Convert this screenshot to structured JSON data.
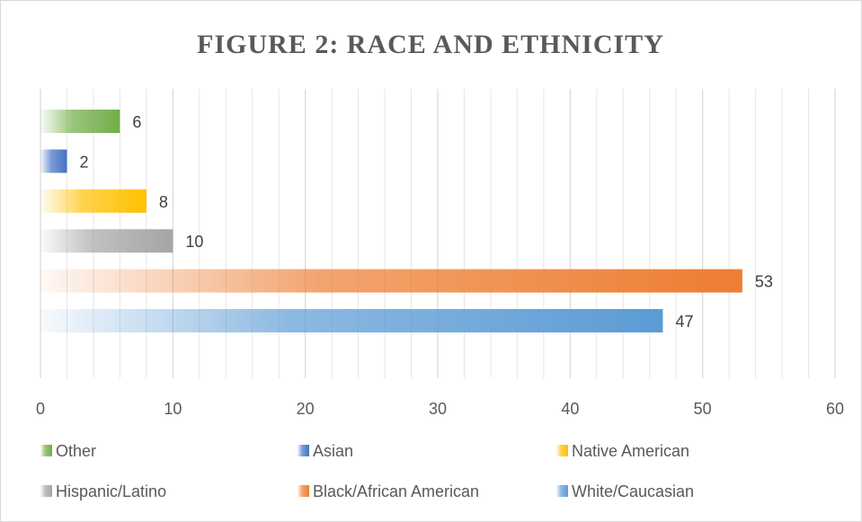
{
  "chart_data": {
    "type": "bar",
    "orientation": "horizontal",
    "title": "FIGURE 2: RACE AND ETHNICITY",
    "categories": [
      "White/Caucasian",
      "Black/African American",
      "Hispanic/Latino",
      "Native American",
      "Asian",
      "Other"
    ],
    "values": [
      47,
      53,
      10,
      8,
      2,
      6
    ],
    "data_labels": [
      "47",
      "53",
      "10",
      "8",
      "2",
      "6"
    ],
    "colors": [
      "#5b9bd5",
      "#ed7d31",
      "#a5a5a5",
      "#ffc000",
      "#4472c4",
      "#70ad47"
    ],
    "xlim": [
      0,
      60
    ],
    "x_ticks": [
      "0",
      "10",
      "20",
      "30",
      "40",
      "50",
      "60"
    ],
    "grid": true,
    "legend_position": "bottom",
    "legend": [
      "Other",
      "Asian",
      "Native American",
      "Hispanic/Latino",
      "Black/African American",
      "White/Caucasian"
    ]
  }
}
